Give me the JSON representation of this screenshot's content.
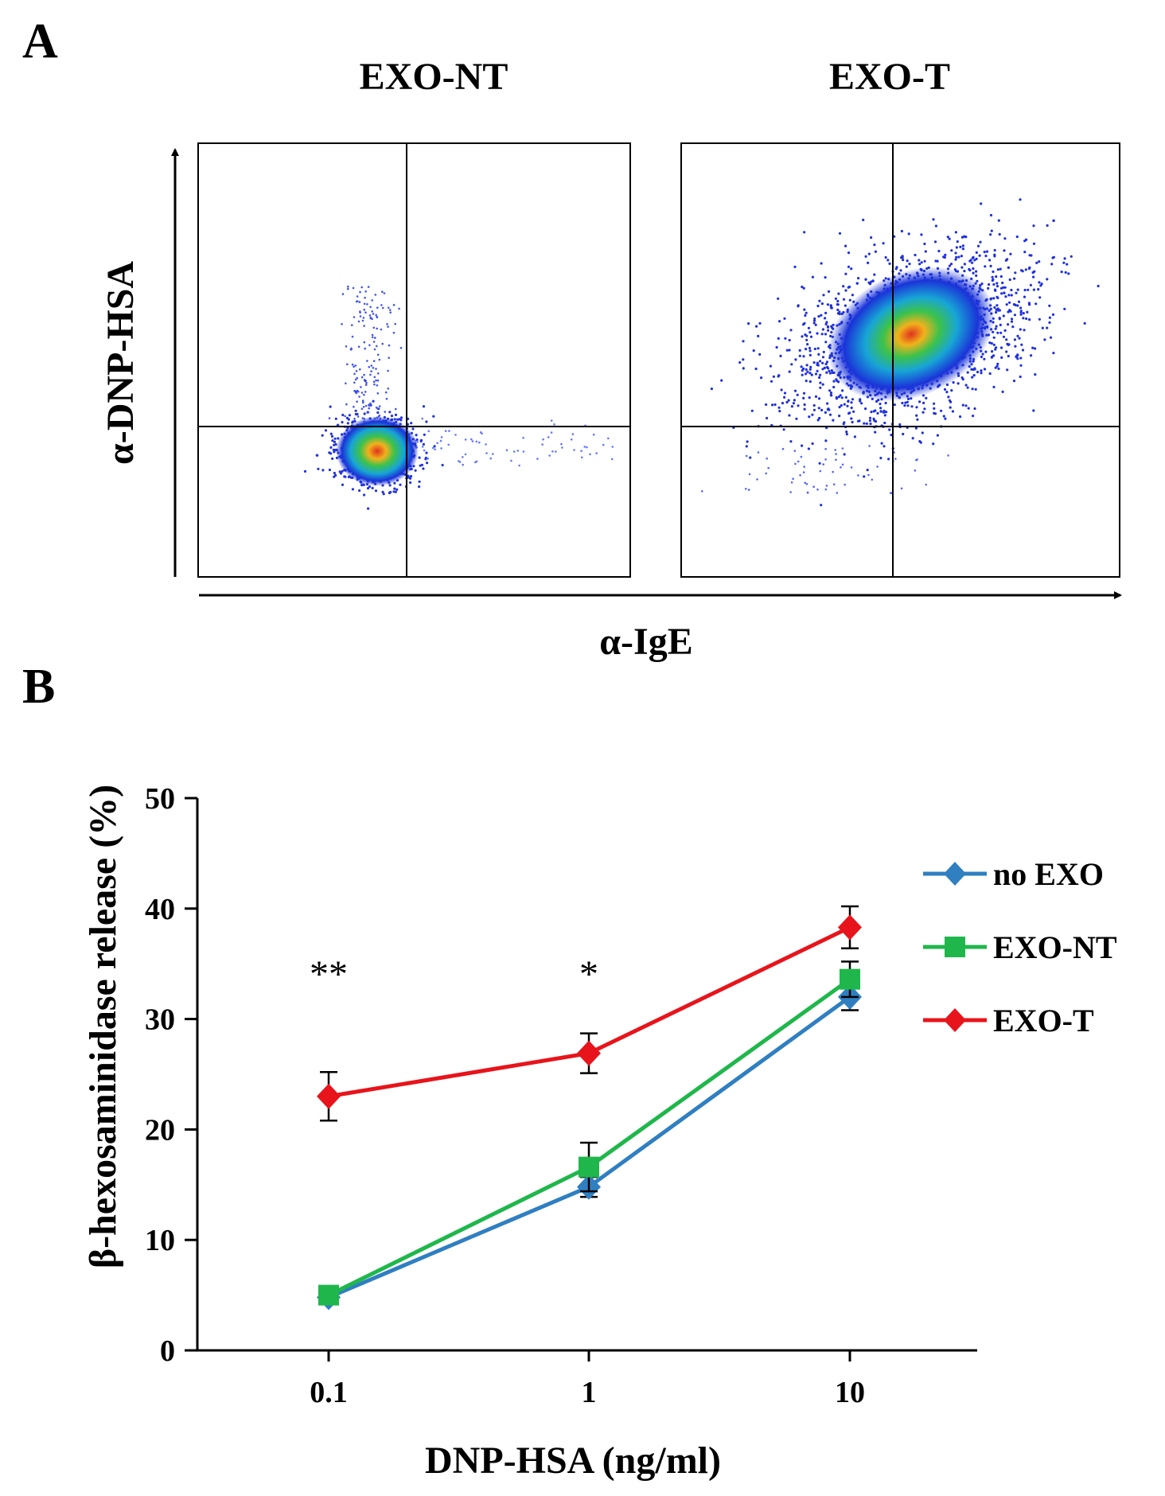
{
  "panel_a": {
    "label": "A",
    "plots": [
      {
        "title": "EXO-NT"
      },
      {
        "title": "EXO-T"
      }
    ],
    "y_axis_label": "α-DNP-HSA",
    "x_axis_label": "α-IgE"
  },
  "panel_b": {
    "label": "B"
  },
  "chart_data": [
    {
      "type": "scatter",
      "title": "EXO-NT",
      "xlabel": "α-IgE",
      "ylabel": "α-DNP-HSA",
      "quadrant_gates": true,
      "population": {
        "center": [
          0.42,
          0.29
        ],
        "spread": "compact"
      }
    },
    {
      "type": "scatter",
      "title": "EXO-T",
      "xlabel": "α-IgE",
      "ylabel": "α-DNP-HSA",
      "quadrant_gates": true,
      "population": {
        "center": [
          0.55,
          0.55
        ],
        "spread": "diffuse"
      }
    },
    {
      "type": "line",
      "xlabel": "DNP-HSA (ng/ml)",
      "ylabel": "β-hexosaminidase release (%)",
      "x_scale": "log",
      "categories": [
        "0.1",
        "1",
        "10"
      ],
      "ylim": [
        0,
        50
      ],
      "yticks": [
        "0",
        "10",
        "20",
        "30",
        "40",
        "50"
      ],
      "legend_position": "right",
      "series": [
        {
          "name": "no EXO",
          "color": "#2f7fc1",
          "marker": "diamond",
          "values": [
            4.8,
            14.8,
            32.0
          ],
          "errors": [
            0.4,
            0.9,
            1.2
          ]
        },
        {
          "name": "EXO-NT",
          "color": "#1fb74b",
          "marker": "square",
          "values": [
            5.0,
            16.6,
            33.6
          ],
          "errors": [
            0.4,
            2.2,
            1.6
          ]
        },
        {
          "name": "EXO-T",
          "color": "#e8141b",
          "marker": "diamond",
          "values": [
            23.0,
            26.9,
            38.3
          ],
          "errors": [
            2.2,
            1.8,
            1.9
          ]
        }
      ],
      "annotations": [
        {
          "category": "0.1",
          "text": "**"
        },
        {
          "category": "1",
          "text": "*"
        }
      ]
    }
  ]
}
